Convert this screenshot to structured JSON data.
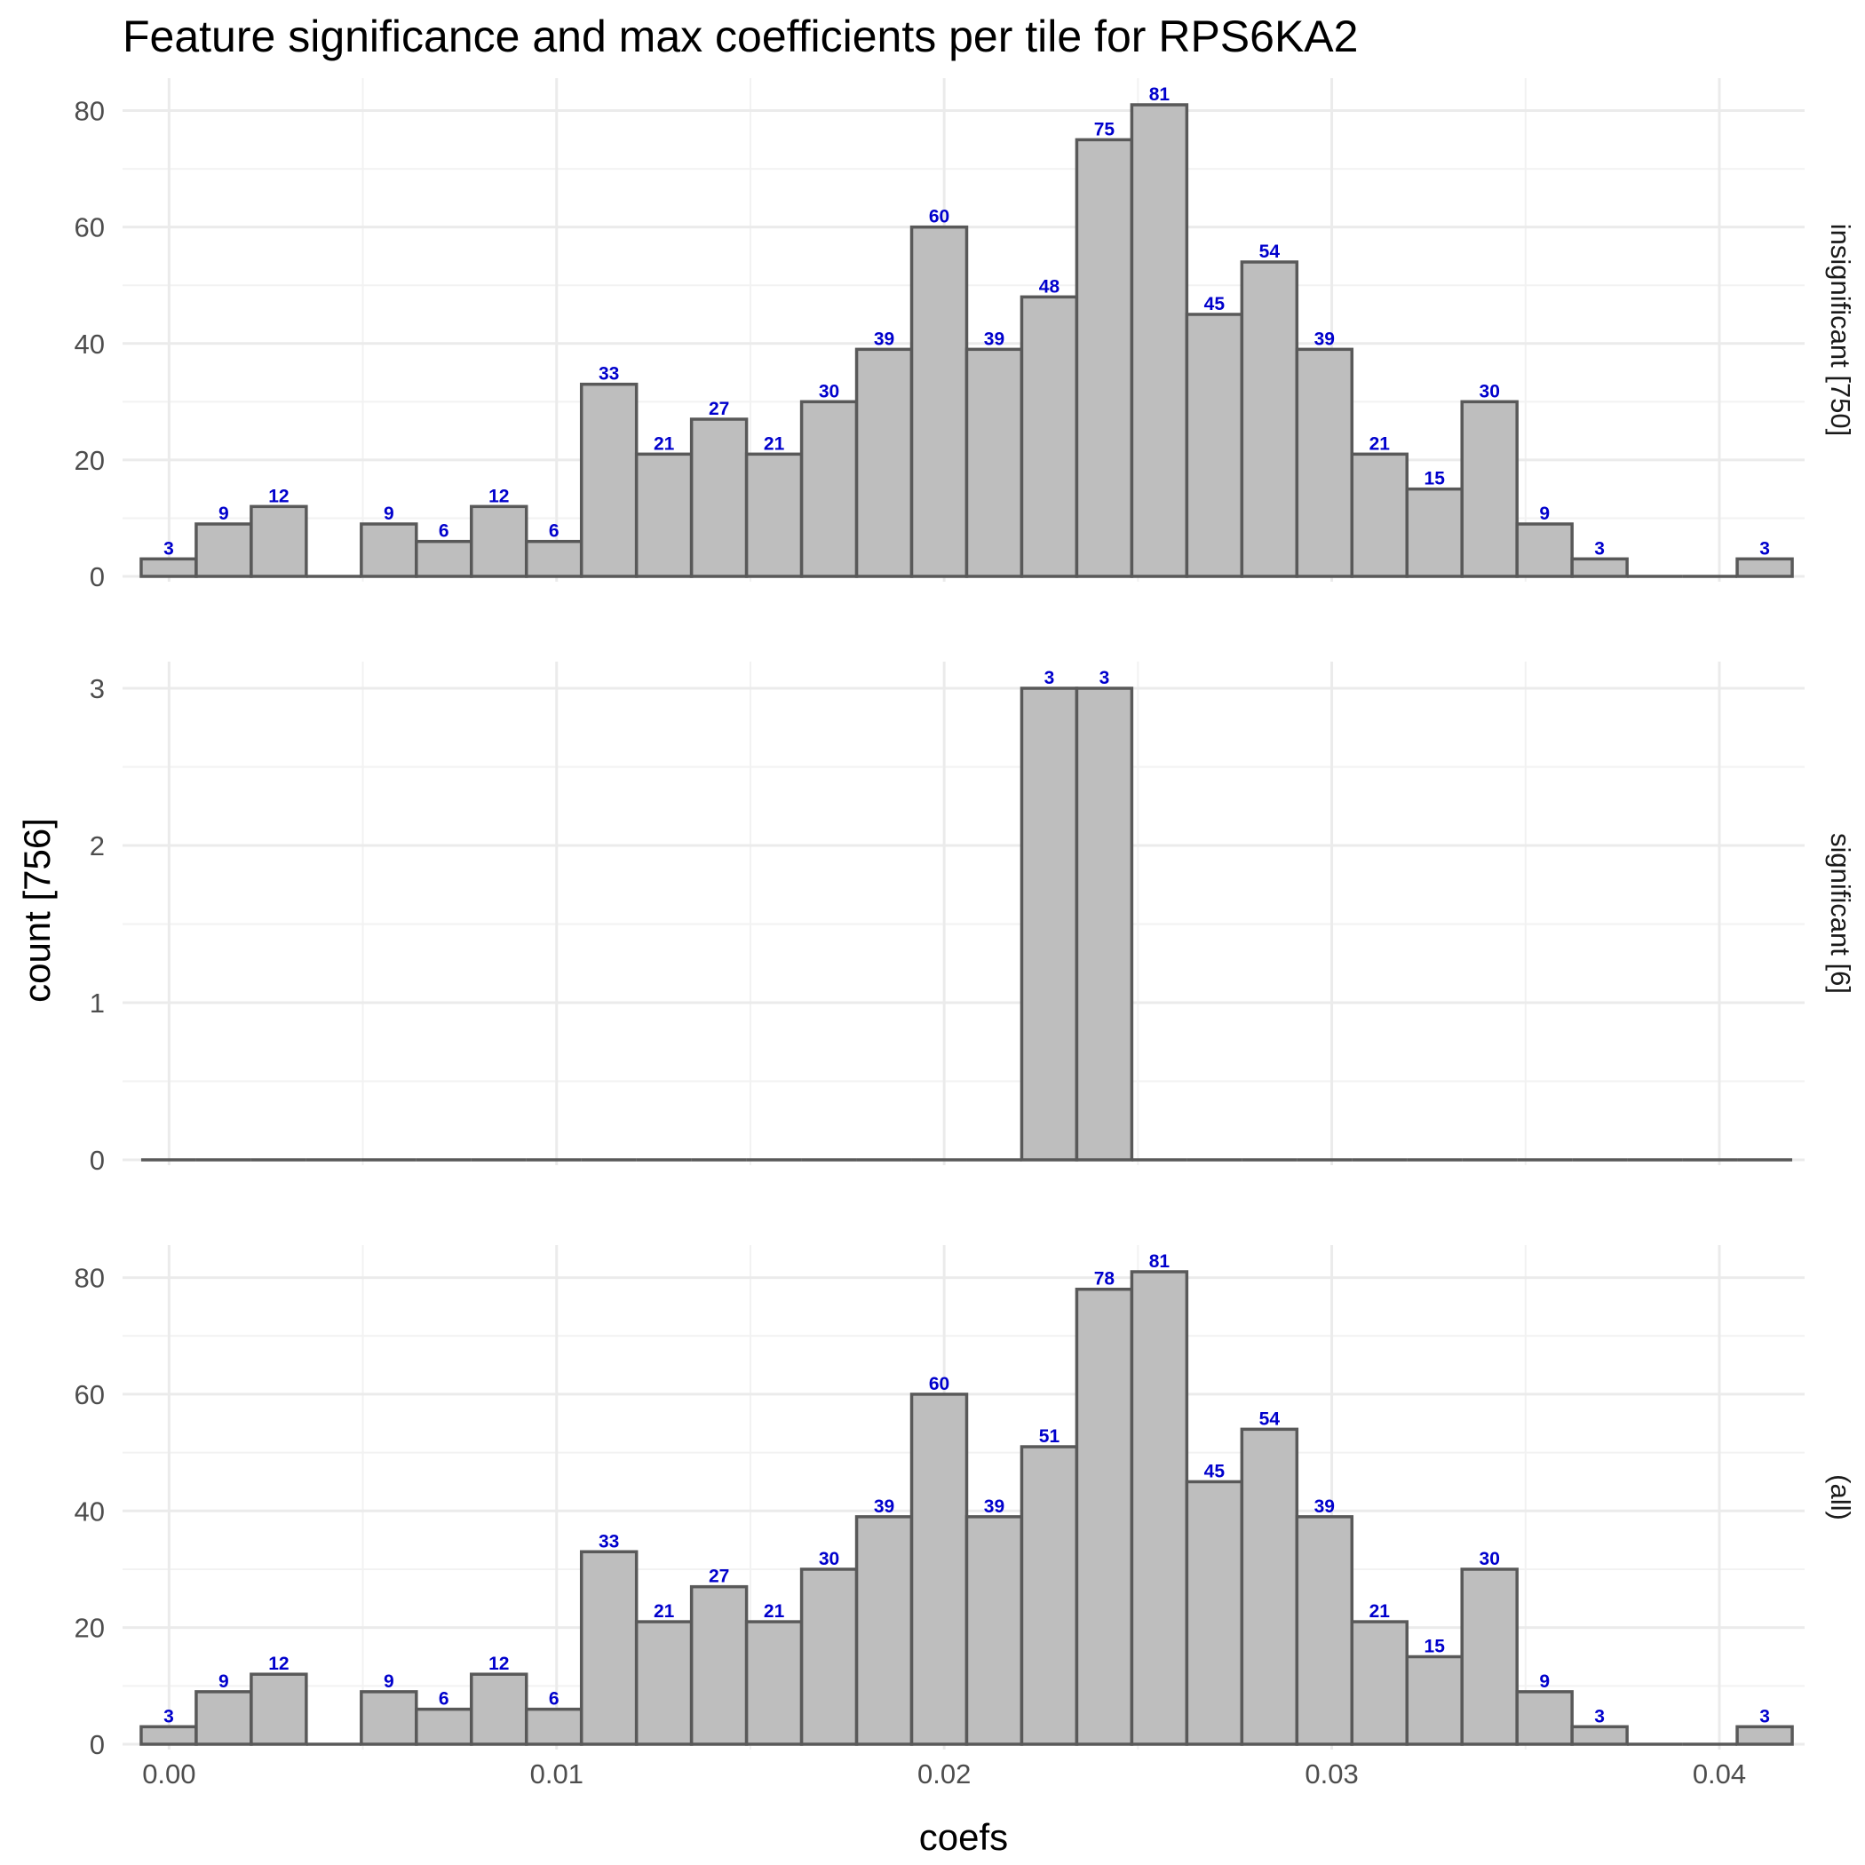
{
  "chart_data": {
    "type": "bar",
    "chart_kind": "faceted histogram",
    "title": "Feature significance and max coefficients per tile for RPS6KA2",
    "xlabel": "coefs",
    "ylabel": "count [756]",
    "xlim": [
      -0.0012,
      0.0422
    ],
    "x_ticks": [
      0.0,
      0.01,
      0.02,
      0.03,
      0.04
    ],
    "x_tick_labels": [
      "0.00",
      "0.01",
      "0.02",
      "0.03",
      "0.04"
    ],
    "grid": true,
    "bar_fill": "#bebebe",
    "bar_stroke": "#595959",
    "label_color": "#0000cc",
    "bin_start": -0.00072,
    "bin_width": 0.00142,
    "bin_count": 30,
    "facets": [
      {
        "label": "insignificant [750]",
        "ylim": [
          0,
          81
        ],
        "y_ticks": [
          0,
          20,
          40,
          60,
          80
        ],
        "values": [
          3,
          9,
          12,
          0,
          9,
          6,
          12,
          6,
          33,
          21,
          27,
          21,
          30,
          39,
          60,
          39,
          48,
          75,
          81,
          45,
          54,
          39,
          21,
          15,
          30,
          9,
          3,
          0,
          0,
          3
        ]
      },
      {
        "label": "significant [6]",
        "ylim": [
          0,
          3
        ],
        "y_ticks": [
          0,
          1,
          2,
          3
        ],
        "values": [
          0,
          0,
          0,
          0,
          0,
          0,
          0,
          0,
          0,
          0,
          0,
          0,
          0,
          0,
          0,
          0,
          3,
          3,
          0,
          0,
          0,
          0,
          0,
          0,
          0,
          0,
          0,
          0,
          0,
          0
        ]
      },
      {
        "label": "(all)",
        "ylim": [
          0,
          81
        ],
        "y_ticks": [
          0,
          20,
          40,
          60,
          80
        ],
        "values": [
          3,
          9,
          12,
          0,
          9,
          6,
          12,
          6,
          33,
          21,
          27,
          21,
          30,
          39,
          60,
          39,
          51,
          78,
          81,
          45,
          54,
          39,
          21,
          15,
          30,
          9,
          3,
          0,
          0,
          3
        ]
      }
    ]
  }
}
